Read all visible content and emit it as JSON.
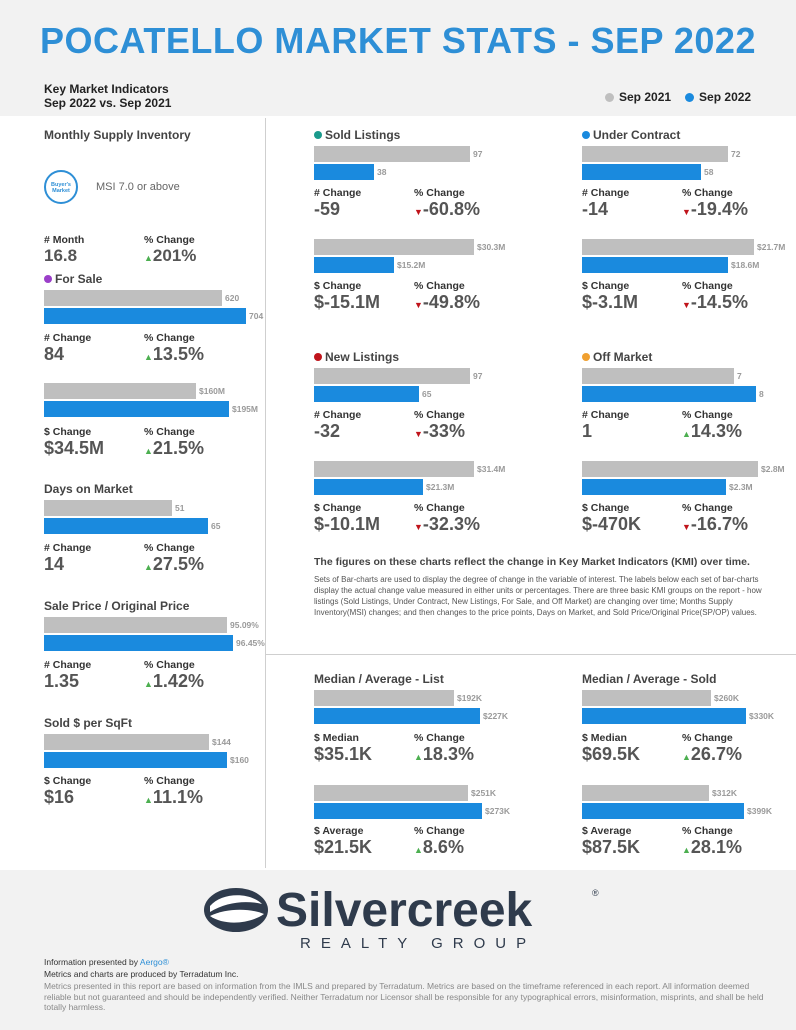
{
  "header": {
    "title": "POCATELLO MARKET STATS - SEP 2022",
    "kmi_line1": "Key Market Indicators",
    "kmi_line2": "Sep 2022 vs. Sep 2021",
    "legend_2021": "Sep 2021",
    "legend_2022": "Sep 2022"
  },
  "colors": {
    "accent": "#2e8fd6",
    "bar_2021": "#bfbfbf",
    "bar_2022": "#1a8ade",
    "up": "#4caf50",
    "down": "#c0141b"
  },
  "msi": {
    "title": "Monthly Supply Inventory",
    "badge": "Buyer's Market",
    "desc": "MSI 7.0 or above",
    "month_label": "# Month",
    "month_val": "16.8",
    "pct_label": "% Change",
    "pct_val": "201%"
  },
  "for_sale": {
    "title": "For Sale",
    "u21": "620",
    "u22": "704",
    "f21": 0.81,
    "f22": 0.92,
    "cl": "# Change",
    "cv": "84",
    "pl": "% Change",
    "pv": "13.5%",
    "d21": "$160M",
    "d22": "$195M",
    "g21": 0.69,
    "g22": 0.84,
    "dcl": "$ Change",
    "dcv": "$34.5M",
    "dpl": "% Change",
    "dpv": "21.5%"
  },
  "dom": {
    "title": "Days on Market",
    "v21": "51",
    "v22": "65",
    "f21": 0.64,
    "f22": 0.82,
    "cl": "# Change",
    "cv": "14",
    "pl": "% Change",
    "pv": "27.5%"
  },
  "spop": {
    "title": "Sale Price / Original Price",
    "v21": "95.09%",
    "v22": "96.45%",
    "f21": 0.83,
    "f22": 0.86,
    "cl": "# Change",
    "cv": "1.35",
    "pl": "% Change",
    "pv": "1.42%"
  },
  "sqft": {
    "title": "Sold $ per SqFt",
    "v21": "$144",
    "v22": "$160",
    "f21": 0.75,
    "f22": 0.83,
    "cl": "$ Change",
    "cv": "$16",
    "pl": "% Change",
    "pv": "11.1%"
  },
  "sold": {
    "title": "Sold Listings",
    "u21": "97",
    "u22": "38",
    "f21": 0.8,
    "f22": 0.31,
    "cl": "# Change",
    "cv": "-59",
    "pl": "% Change",
    "pv": "-60.8%",
    "d21": "$30.3M",
    "d22": "$15.2M",
    "g21": 0.82,
    "g22": 0.41,
    "dcl": "$ Change",
    "dcv": "$-15.1M",
    "dpl": "% Change",
    "dpv": "-49.8%"
  },
  "uc": {
    "title": "Under Contract",
    "u21": "72",
    "u22": "58",
    "f21": 0.75,
    "f22": 0.61,
    "cl": "# Change",
    "cv": "-14",
    "pl": "% Change",
    "pv": "-19.4%",
    "d21": "$21.7M",
    "d22": "$18.6M",
    "g21": 0.88,
    "g22": 0.75,
    "dcl": "$ Change",
    "dcv": "$-3.1M",
    "dpl": "% Change",
    "dpv": "-14.5%"
  },
  "nl": {
    "title": "New Listings",
    "u21": "97",
    "u22": "65",
    "f21": 0.8,
    "f22": 0.54,
    "cl": "# Change",
    "cv": "-32",
    "pl": "% Change",
    "pv": "-33%",
    "d21": "$31.4M",
    "d22": "$21.3M",
    "g21": 0.82,
    "g22": 0.56,
    "dcl": "$ Change",
    "dcv": "$-10.1M",
    "dpl": "% Change",
    "dpv": "-32.3%"
  },
  "om": {
    "title": "Off Market",
    "u21": "7",
    "u22": "8",
    "f21": 0.78,
    "f22": 0.89,
    "cl": "# Change",
    "cv": "1",
    "pl": "% Change",
    "pv": "14.3%",
    "d21": "$2.8M",
    "d22": "$2.3M",
    "g21": 0.9,
    "g22": 0.74,
    "dcl": "$ Change",
    "dcv": "$-470K",
    "dpl": "% Change",
    "dpv": "-16.7%"
  },
  "note": {
    "bold": "The figures on these charts reflect the change in Key Market Indicators (KMI) over time.",
    "body": "Sets of Bar-charts are used to display the degree of change in the variable of interest. The labels below each set of bar-charts display the actual change value measured in either units or percentages. There are three basic KMI groups on the report - how listings (Sold Listings, Under Contract, New Listings, For Sale, and Off Market) are changing over time; Months Supply Inventory(MSI) changes; and then changes to the price points, Days on Market, and Sold Price/Original Price(SP/OP) values."
  },
  "mal": {
    "title": "Median / Average - List",
    "m21": "$192K",
    "m22": "$227K",
    "f21": 0.72,
    "f22": 0.85,
    "ml": "$ Median",
    "mv": "$35.1K",
    "mpl": "% Change",
    "mpv": "18.3%",
    "a21": "$251K",
    "a22": "$273K",
    "g21": 0.79,
    "g22": 0.86,
    "al": "$ Average",
    "av": "$21.5K",
    "apl": "% Change",
    "apv": "8.6%"
  },
  "mas": {
    "title": "Median / Average - Sold",
    "m21": "$260K",
    "m22": "$330K",
    "f21": 0.66,
    "f22": 0.84,
    "ml": "$ Median",
    "mv": "$69.5K",
    "mpl": "% Change",
    "mpv": "26.7%",
    "a21": "$312K",
    "a22": "$399K",
    "g21": 0.65,
    "g22": 0.83,
    "al": "$ Average",
    "av": "$87.5K",
    "apl": "% Change",
    "apv": "28.1%"
  },
  "footer": {
    "logo_word": "Silvercreek",
    "logo_sub": "REALTY GROUP",
    "presented": "Information presented by ",
    "aergo": "Aergo®",
    "produced": "Metrics and charts are produced by Terradatum Inc.",
    "disclaimer": "Metrics presented in this report are based on information from the IMLS and prepared by Terradatum. Metrics are based on the timeframe referenced in each report. All information deemed reliable but not guaranteed and should be independently verified. Neither Terradatum nor Licensor shall be responsible for any typographical errors, misinformation, misprints, and shall be held totally harmless."
  }
}
